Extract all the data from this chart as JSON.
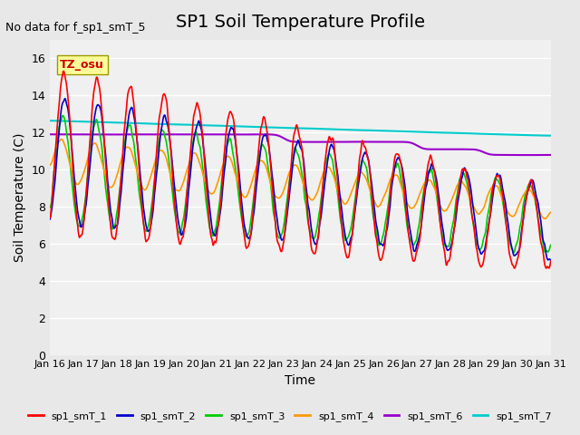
{
  "title": "SP1 Soil Temperature Profile",
  "xlabel": "Time",
  "ylabel": "Soil Temperature (C)",
  "no_data_text": "No data for f_sp1_smT_5",
  "tz_label": "TZ_osu",
  "ylim": [
    0,
    17
  ],
  "yticks": [
    0,
    2,
    4,
    6,
    8,
    10,
    12,
    14,
    16
  ],
  "xtick_labels": [
    "Jan 16",
    "Jan 17",
    "Jan 18",
    "Jan 19",
    "Jan 20",
    "Jan 21",
    "Jan 22",
    "Jan 23",
    "Jan 24",
    "Jan 25",
    "Jan 26",
    "Jan 27",
    "Jan 28",
    "Jan 29",
    "Jan 30",
    "Jan 31"
  ],
  "line_colors": {
    "sp1_smT_1": "#ff0000",
    "sp1_smT_2": "#0000cc",
    "sp1_smT_3": "#00cc00",
    "sp1_smT_4": "#ff9900",
    "sp1_smT_6": "#9900cc",
    "sp1_smT_7": "#00cccc"
  },
  "legend_labels": [
    "sp1_smT_1",
    "sp1_smT_2",
    "sp1_smT_3",
    "sp1_smT_4",
    "sp1_smT_6",
    "sp1_smT_7"
  ],
  "bg_color": "#e8e8e8",
  "plot_bg_color": "#f0f0f0",
  "title_fontsize": 14,
  "label_fontsize": 10,
  "tick_fontsize": 9
}
